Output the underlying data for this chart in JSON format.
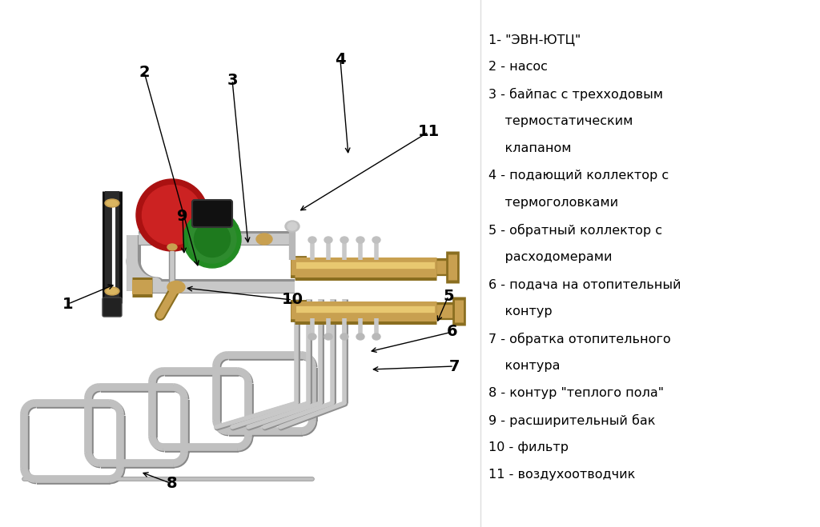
{
  "background_color": "#ffffff",
  "figure_width": 10.24,
  "figure_height": 6.59,
  "legend_lines": [
    "1- \"ЭВН-ЮТЦ\"",
    "2 - насос",
    "3 - байпас с трехходовым",
    "    термостатическим",
    "    клапаном",
    "4 - подающий коллектор с",
    "    термоголовками",
    "5 - обратный коллектор с",
    "    расходомерами",
    "6 - подача на отопительный",
    "    контур",
    "7 - обратка отопительного",
    "    контура",
    "8 - контур \"теплого пола\"",
    "9 - расширительный бак",
    "10 - фильтр",
    "11 - воздухоотводчик"
  ],
  "pipe_color": "#c8c8c8",
  "pipe_shadow": "#909090",
  "brass_color": "#c8a050",
  "brass_dark": "#8a6e20",
  "green_color": "#2e8b2e",
  "red_color": "#cc2222",
  "black_color": "#1a1a1a",
  "loop_color": "#c0c0c0",
  "loop_shadow": "#888888"
}
